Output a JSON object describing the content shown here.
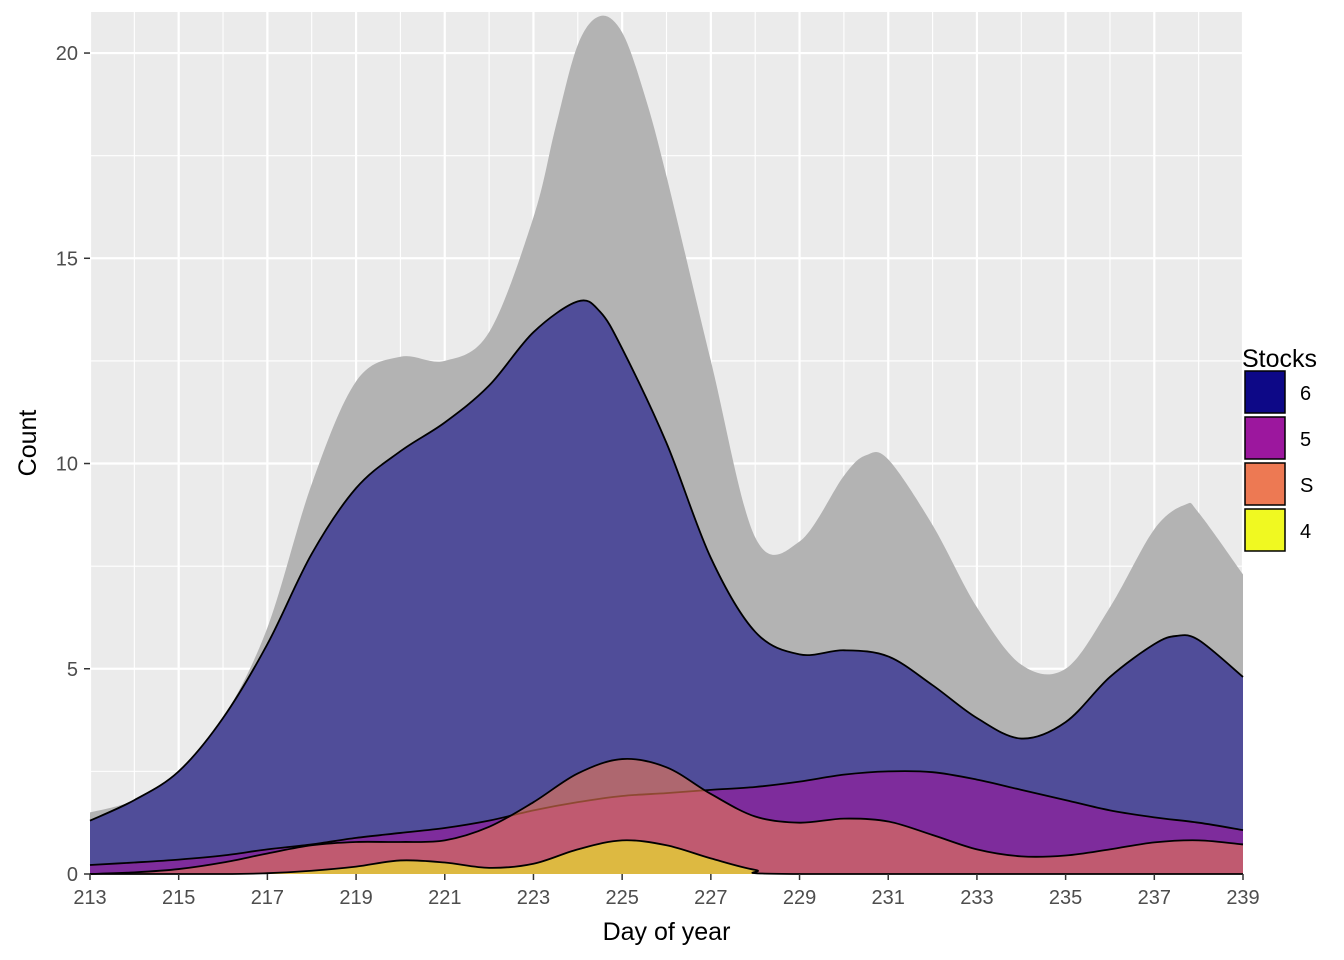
{
  "chart_data": {
    "type": "area",
    "title": "",
    "xlabel": "Day of year",
    "ylabel": "Count",
    "xlim": [
      213,
      239
    ],
    "ylim": [
      0,
      21
    ],
    "x_ticks": [
      213,
      215,
      217,
      219,
      221,
      223,
      225,
      227,
      229,
      231,
      233,
      235,
      237,
      239
    ],
    "y_ticks": [
      0,
      5,
      10,
      15,
      20
    ],
    "grid": true,
    "legend": {
      "title": "Stocks",
      "position": "right",
      "entries": [
        {
          "label": "6",
          "color": "#0d0887"
        },
        {
          "label": "5",
          "color": "#9c179e"
        },
        {
          "label": "S",
          "color": "#ed7953"
        },
        {
          "label": "4",
          "color": "#f0f921"
        }
      ]
    },
    "total": {
      "color": "#b3b3b3",
      "points": [
        [
          213,
          1.5
        ],
        [
          214,
          1.8
        ],
        [
          215,
          2.5
        ],
        [
          216,
          3.8
        ],
        [
          217,
          6.0
        ],
        [
          218,
          9.5
        ],
        [
          219,
          12.0
        ],
        [
          220,
          12.6
        ],
        [
          221,
          12.5
        ],
        [
          222,
          13.2
        ],
        [
          223,
          16.0
        ],
        [
          223.5,
          18.2
        ],
        [
          224,
          20.2
        ],
        [
          224.5,
          20.9
        ],
        [
          225,
          20.5
        ],
        [
          225.5,
          19.0
        ],
        [
          226,
          17.0
        ],
        [
          227,
          12.5
        ],
        [
          228,
          8.2
        ],
        [
          229,
          8.1
        ],
        [
          230,
          9.7
        ],
        [
          230.5,
          10.2
        ],
        [
          231,
          10.1
        ],
        [
          232,
          8.5
        ],
        [
          233,
          6.5
        ],
        [
          234,
          5.1
        ],
        [
          235,
          5.0
        ],
        [
          236,
          6.5
        ],
        [
          237,
          8.4
        ],
        [
          237.7,
          9.0
        ],
        [
          238,
          8.8
        ],
        [
          239,
          7.3
        ]
      ]
    },
    "series": [
      {
        "name": "6",
        "color": "#0d0887",
        "fill_opacity": 0.6,
        "points": [
          [
            213,
            1.3
          ],
          [
            214,
            1.8
          ],
          [
            215,
            2.5
          ],
          [
            216,
            3.8
          ],
          [
            217,
            5.6
          ],
          [
            218,
            7.8
          ],
          [
            219,
            9.4
          ],
          [
            220,
            10.3
          ],
          [
            221,
            11.0
          ],
          [
            222,
            11.9
          ],
          [
            223,
            13.2
          ],
          [
            224,
            13.95
          ],
          [
            224.5,
            13.7
          ],
          [
            225,
            12.8
          ],
          [
            226,
            10.5
          ],
          [
            227,
            7.7
          ],
          [
            228,
            5.9
          ],
          [
            229,
            5.35
          ],
          [
            230,
            5.45
          ],
          [
            231,
            5.3
          ],
          [
            232,
            4.6
          ],
          [
            233,
            3.8
          ],
          [
            234,
            3.3
          ],
          [
            235,
            3.7
          ],
          [
            236,
            4.8
          ],
          [
            237,
            5.6
          ],
          [
            237.5,
            5.8
          ],
          [
            238,
            5.7
          ],
          [
            239,
            4.8
          ]
        ]
      },
      {
        "name": "5",
        "color": "#9c179e",
        "fill_opacity": 0.6,
        "points": [
          [
            213,
            0.22
          ],
          [
            214,
            0.28
          ],
          [
            215,
            0.35
          ],
          [
            216,
            0.45
          ],
          [
            217,
            0.6
          ],
          [
            218,
            0.72
          ],
          [
            219,
            0.88
          ],
          [
            220,
            1.0
          ],
          [
            221,
            1.12
          ],
          [
            222,
            1.3
          ],
          [
            223,
            1.55
          ],
          [
            224,
            1.75
          ],
          [
            225,
            1.9
          ],
          [
            226,
            1.97
          ],
          [
            227,
            2.05
          ],
          [
            228,
            2.12
          ],
          [
            229,
            2.25
          ],
          [
            230,
            2.42
          ],
          [
            231,
            2.5
          ],
          [
            232,
            2.48
          ],
          [
            233,
            2.3
          ],
          [
            234,
            2.05
          ],
          [
            235,
            1.8
          ],
          [
            236,
            1.55
          ],
          [
            237,
            1.38
          ],
          [
            238,
            1.25
          ],
          [
            239,
            1.07
          ]
        ]
      },
      {
        "name": "S",
        "color": "#ed7953",
        "fill_opacity": 0.6,
        "points": [
          [
            213,
            0.0
          ],
          [
            214,
            0.04
          ],
          [
            215,
            0.12
          ],
          [
            216,
            0.28
          ],
          [
            217,
            0.5
          ],
          [
            218,
            0.7
          ],
          [
            219,
            0.78
          ],
          [
            220,
            0.78
          ],
          [
            221,
            0.82
          ],
          [
            222,
            1.15
          ],
          [
            223,
            1.75
          ],
          [
            224,
            2.45
          ],
          [
            225,
            2.8
          ],
          [
            226,
            2.6
          ],
          [
            227,
            1.95
          ],
          [
            228,
            1.4
          ],
          [
            229,
            1.25
          ],
          [
            230,
            1.35
          ],
          [
            231,
            1.28
          ],
          [
            232,
            0.95
          ],
          [
            233,
            0.6
          ],
          [
            234,
            0.43
          ],
          [
            235,
            0.45
          ],
          [
            236,
            0.6
          ],
          [
            237,
            0.77
          ],
          [
            238,
            0.82
          ],
          [
            239,
            0.72
          ]
        ]
      },
      {
        "name": "4",
        "color": "#f0f921",
        "fill_opacity": 0.6,
        "points": [
          [
            213,
            0.0
          ],
          [
            216,
            0.0
          ],
          [
            217,
            0.02
          ],
          [
            218,
            0.08
          ],
          [
            219,
            0.18
          ],
          [
            220,
            0.33
          ],
          [
            221,
            0.28
          ],
          [
            222,
            0.15
          ],
          [
            223,
            0.25
          ],
          [
            224,
            0.6
          ],
          [
            225,
            0.82
          ],
          [
            226,
            0.7
          ],
          [
            227,
            0.38
          ],
          [
            228,
            0.1
          ],
          [
            229,
            0.0
          ],
          [
            239,
            0.0
          ]
        ]
      }
    ]
  }
}
